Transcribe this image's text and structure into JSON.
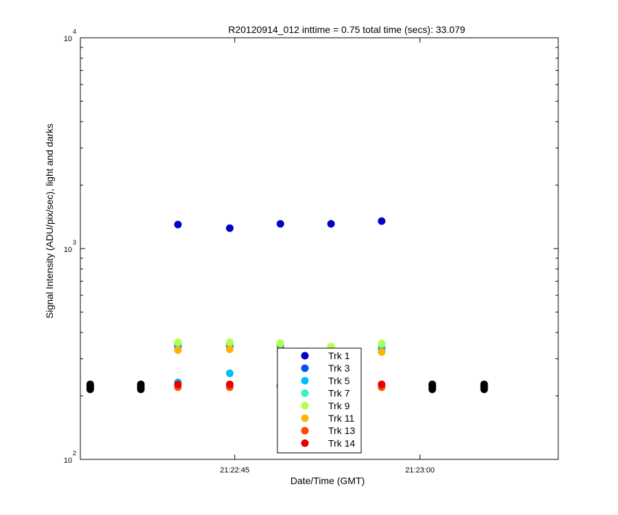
{
  "chart_data": {
    "type": "scatter",
    "title": "R20120914_012 inttime = 0.75 total time (secs): 33.079",
    "xlabel": "Date/Time (GMT)",
    "ylabel": "Signal Intensity (ADU/pix/sec), light and darks",
    "yscale": "log",
    "ylim": [
      100,
      10000
    ],
    "xlim": [
      "21:22:32.5",
      "21:23:11.2"
    ],
    "x_ticks": [
      "21:22:45",
      "21:23:00"
    ],
    "y_ticks": [
      {
        "base": "10",
        "exp": "2",
        "value": 100
      },
      {
        "base": "10",
        "exp": "3",
        "value": 1000
      },
      {
        "base": "10",
        "exp": "4",
        "value": 10000
      }
    ],
    "legend_position": "bottom-center",
    "series": [
      {
        "name": "Trk 1",
        "color": "#0000c8",
        "points": [
          [
            "21:22:40.4",
            1300
          ],
          [
            "21:22:44.6",
            1250
          ],
          [
            "21:22:48.7",
            1310
          ],
          [
            "21:22:52.8",
            1310
          ],
          [
            "21:22:56.9",
            1350
          ]
        ]
      },
      {
        "name": "Trk 3",
        "color": "#0a50f0",
        "points": [
          [
            "21:22:40.4",
            345
          ],
          [
            "21:22:44.6",
            345
          ],
          [
            "21:22:48.7",
            345
          ],
          [
            "21:22:52.8",
            335
          ],
          [
            "21:22:56.9",
            335
          ]
        ]
      },
      {
        "name": "Trk 5",
        "color": "#00bff2",
        "points": [
          [
            "21:22:40.4",
            232
          ],
          [
            "21:22:44.6",
            256
          ],
          [
            "21:22:48.7",
            345
          ],
          [
            "21:22:52.8",
            335
          ],
          [
            "21:22:56.9",
            332
          ]
        ]
      },
      {
        "name": "Trk 7",
        "color": "#3af2c4",
        "points": [
          [
            "21:22:40.4",
            355
          ],
          [
            "21:22:44.6",
            355
          ],
          [
            "21:22:48.7",
            355
          ],
          [
            "21:22:52.8",
            342
          ],
          [
            "21:22:56.9",
            352
          ]
        ]
      },
      {
        "name": "Trk 9",
        "color": "#b4ff4c",
        "points": [
          [
            "21:22:40.4",
            360
          ],
          [
            "21:22:44.6",
            360
          ],
          [
            "21:22:48.7",
            356
          ],
          [
            "21:22:52.8",
            343
          ],
          [
            "21:22:56.9",
            355
          ]
        ]
      },
      {
        "name": "Trk 11",
        "color": "#ffb200",
        "points": [
          [
            "21:22:40.4",
            330
          ],
          [
            "21:22:44.6",
            333
          ],
          [
            "21:22:48.7",
            328
          ],
          [
            "21:22:56.9",
            323
          ]
        ]
      },
      {
        "name": "Trk 13",
        "color": "#ff4a00",
        "points": [
          [
            "21:22:40.4",
            220
          ],
          [
            "21:22:44.6",
            220
          ],
          [
            "21:22:48.7",
            225
          ],
          [
            "21:22:56.9",
            220
          ]
        ]
      },
      {
        "name": "Trk 14",
        "color": "#e60000",
        "points": [
          [
            "21:22:40.4",
            227
          ],
          [
            "21:22:44.6",
            227
          ],
          [
            "21:22:48.7",
            222
          ],
          [
            "21:22:56.9",
            227
          ]
        ]
      },
      {
        "color": "#000000",
        "points": [
          [
            "21:22:33.3",
            215
          ],
          [
            "21:22:33.3",
            219
          ],
          [
            "21:22:33.3",
            223
          ],
          [
            "21:22:33.3",
            227
          ],
          [
            "21:22:37.4",
            215
          ],
          [
            "21:22:37.4",
            219
          ],
          [
            "21:22:37.4",
            223
          ],
          [
            "21:22:37.4",
            227
          ],
          [
            "21:23:01.0",
            215
          ],
          [
            "21:23:01.0",
            219
          ],
          [
            "21:23:01.0",
            223
          ],
          [
            "21:23:01.0",
            227
          ],
          [
            "21:23:05.2",
            215
          ],
          [
            "21:23:05.2",
            219
          ],
          [
            "21:23:05.2",
            223
          ],
          [
            "21:23:05.2",
            227
          ]
        ]
      }
    ]
  }
}
